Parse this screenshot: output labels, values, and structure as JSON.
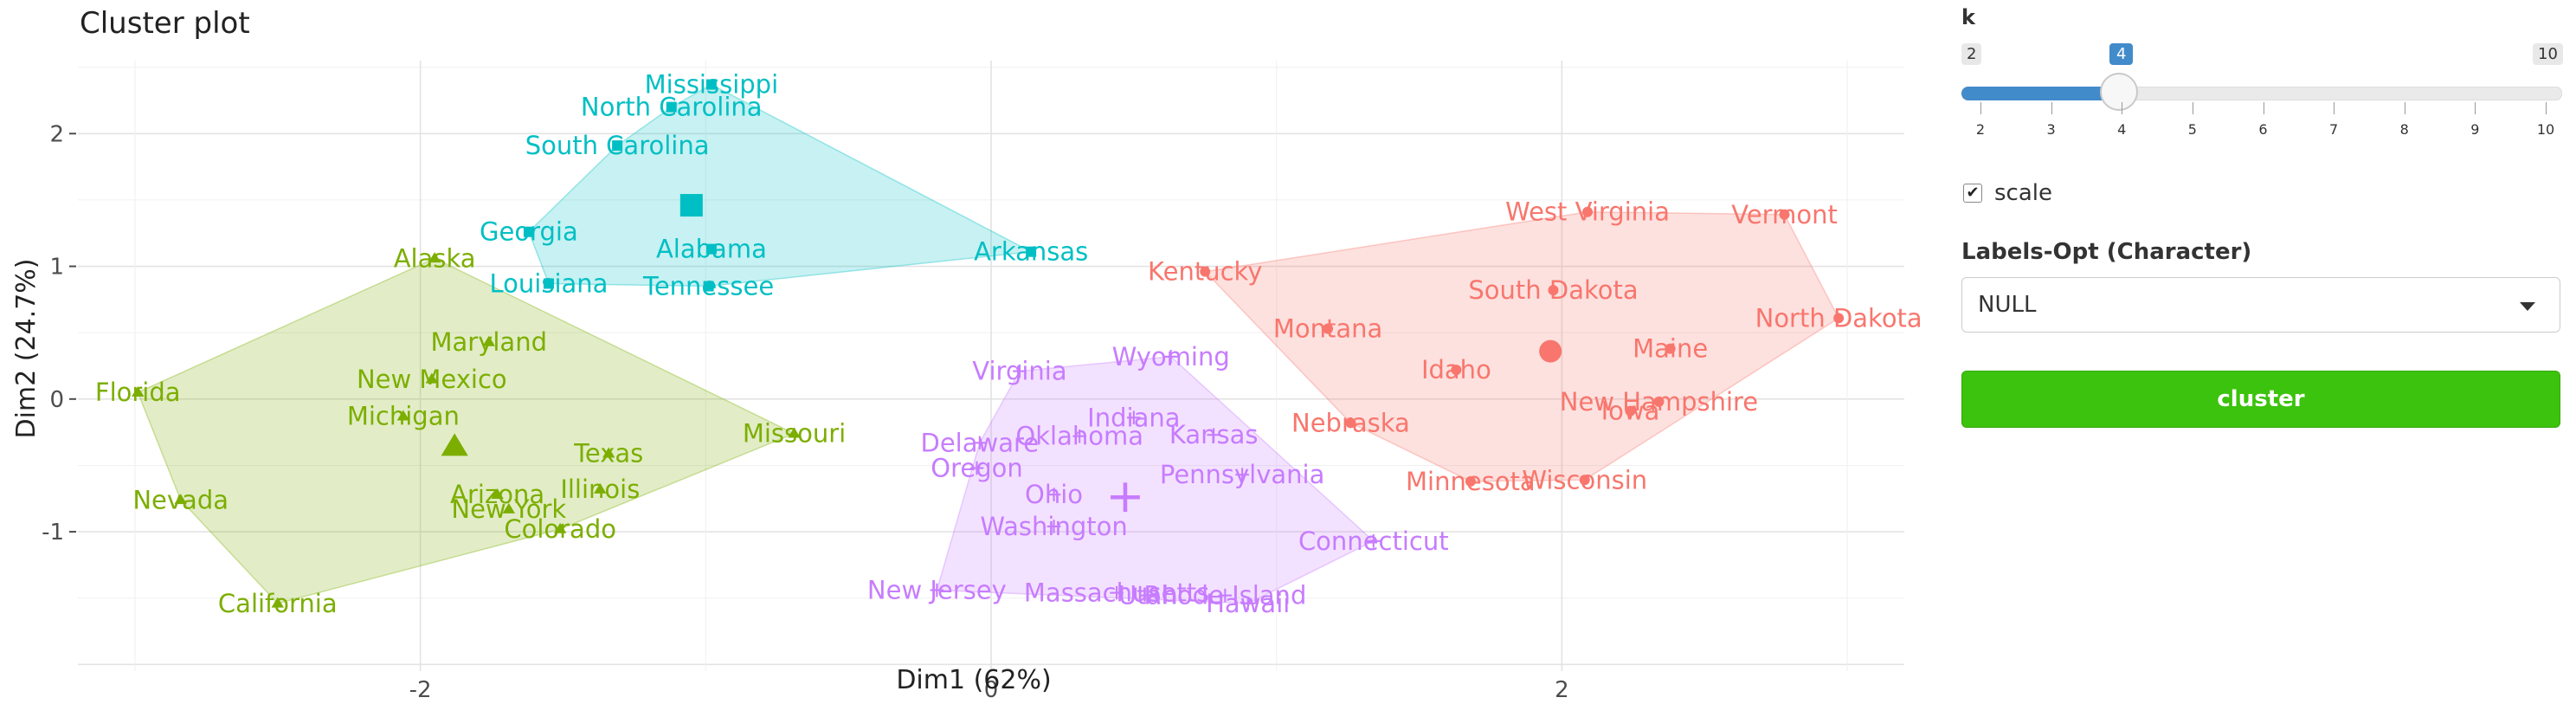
{
  "chart_data": {
    "type": "scatter",
    "title": "Cluster plot",
    "xlabel": "Dim1 (62%)",
    "ylabel": "Dim2 (24.7%)",
    "xlim": [
      -3.2,
      3.2
    ],
    "ylim": [
      -2.05,
      2.55
    ],
    "x_ticks": [
      -2,
      0,
      2
    ],
    "y_ticks": [
      -1,
      0,
      1,
      2
    ],
    "grid": true,
    "clusters": [
      {
        "id": "1",
        "color": "#F8766D",
        "shape": "circle",
        "centroid": [
          1.96,
          0.36
        ],
        "points": [
          {
            "label": "West Virginia",
            "x": 2.09,
            "y": 1.41
          },
          {
            "label": "Vermont",
            "x": 2.78,
            "y": 1.39
          },
          {
            "label": "Kentucky",
            "x": 0.75,
            "y": 0.96
          },
          {
            "label": "South Dakota",
            "x": 1.97,
            "y": 0.82
          },
          {
            "label": "North Dakota",
            "x": 2.97,
            "y": 0.61
          },
          {
            "label": "Montana",
            "x": 1.18,
            "y": 0.53
          },
          {
            "label": "Maine",
            "x": 2.38,
            "y": 0.38
          },
          {
            "label": "Idaho",
            "x": 1.63,
            "y": 0.22
          },
          {
            "label": "New Hampshire",
            "x": 2.34,
            "y": -0.02
          },
          {
            "label": "Iowa",
            "x": 2.24,
            "y": -0.09
          },
          {
            "label": "Nebraska",
            "x": 1.26,
            "y": -0.18
          },
          {
            "label": "Wisconsin",
            "x": 2.08,
            "y": -0.61
          },
          {
            "label": "Minnesota",
            "x": 1.68,
            "y": -0.62
          }
        ]
      },
      {
        "id": "2",
        "color": "#7CAE00",
        "shape": "triangle",
        "centroid": [
          -1.88,
          -0.36
        ],
        "points": [
          {
            "label": "Alaska",
            "x": -1.95,
            "y": 1.06
          },
          {
            "label": "Maryland",
            "x": -1.76,
            "y": 0.43
          },
          {
            "label": "New Mexico",
            "x": -1.96,
            "y": 0.15
          },
          {
            "label": "Florida",
            "x": -2.99,
            "y": 0.05
          },
          {
            "label": "Michigan",
            "x": -2.06,
            "y": -0.13
          },
          {
            "label": "Missouri",
            "x": -0.69,
            "y": -0.26
          },
          {
            "label": "Texas",
            "x": -1.34,
            "y": -0.41
          },
          {
            "label": "Illinois",
            "x": -1.37,
            "y": -0.68
          },
          {
            "label": "Arizona",
            "x": -1.73,
            "y": -0.72
          },
          {
            "label": "New York",
            "x": -1.69,
            "y": -0.83
          },
          {
            "label": "Nevada",
            "x": -2.84,
            "y": -0.76
          },
          {
            "label": "Colorado",
            "x": -1.51,
            "y": -0.98
          },
          {
            "label": "California",
            "x": -2.5,
            "y": -1.54
          }
        ]
      },
      {
        "id": "3",
        "color": "#00BFC4",
        "shape": "square",
        "centroid": [
          -1.05,
          1.46
        ],
        "points": [
          {
            "label": "Mississippi",
            "x": -0.98,
            "y": 2.37
          },
          {
            "label": "North Carolina",
            "x": -1.12,
            "y": 2.2
          },
          {
            "label": "South Carolina",
            "x": -1.31,
            "y": 1.91
          },
          {
            "label": "Georgia",
            "x": -1.62,
            "y": 1.26
          },
          {
            "label": "Alabama",
            "x": -0.98,
            "y": 1.13
          },
          {
            "label": "Arkansas",
            "x": 0.14,
            "y": 1.11
          },
          {
            "label": "Louisiana",
            "x": -1.55,
            "y": 0.87
          },
          {
            "label": "Tennessee",
            "x": -0.99,
            "y": 0.85
          }
        ]
      },
      {
        "id": "4",
        "color": "#C77CFF",
        "shape": "cross",
        "centroid": [
          0.47,
          -0.74
        ],
        "points": [
          {
            "label": "Wyoming",
            "x": 0.63,
            "y": 0.32
          },
          {
            "label": "Virginia",
            "x": 0.1,
            "y": 0.21
          },
          {
            "label": "Indiana",
            "x": 0.5,
            "y": -0.14
          },
          {
            "label": "Kansas",
            "x": 0.78,
            "y": -0.27
          },
          {
            "label": "Oklahoma",
            "x": 0.31,
            "y": -0.28
          },
          {
            "label": "Delaware",
            "x": -0.04,
            "y": -0.33
          },
          {
            "label": "Oregon",
            "x": -0.05,
            "y": -0.52
          },
          {
            "label": "Pennsylvania",
            "x": 0.88,
            "y": -0.57
          },
          {
            "label": "Ohio",
            "x": 0.22,
            "y": -0.72
          },
          {
            "label": "Washington",
            "x": 0.22,
            "y": -0.96
          },
          {
            "label": "Connecticut",
            "x": 1.34,
            "y": -1.07
          },
          {
            "label": "New Jersey",
            "x": -0.19,
            "y": -1.44
          },
          {
            "label": "Massachusetts",
            "x": 0.44,
            "y": -1.46
          },
          {
            "label": "Utah",
            "x": 0.55,
            "y": -1.48
          },
          {
            "label": "Rhode Island",
            "x": 0.82,
            "y": -1.48
          },
          {
            "label": "Hawaii",
            "x": 0.9,
            "y": -1.54
          }
        ]
      }
    ]
  },
  "controls": {
    "k_label": "k",
    "k_min": "2",
    "k_max": "10",
    "k_value": "4",
    "k_ticks": [
      "2",
      "3",
      "4",
      "5",
      "6",
      "7",
      "8",
      "9",
      "10"
    ],
    "scale_label": "scale",
    "scale_checked": true,
    "labels_opt_title": "Labels-Opt (Character)",
    "labels_opt_value": "NULL",
    "cluster_button": "cluster",
    "cluster_button_color": "#3cc30d",
    "slider_color": "#428bca"
  }
}
